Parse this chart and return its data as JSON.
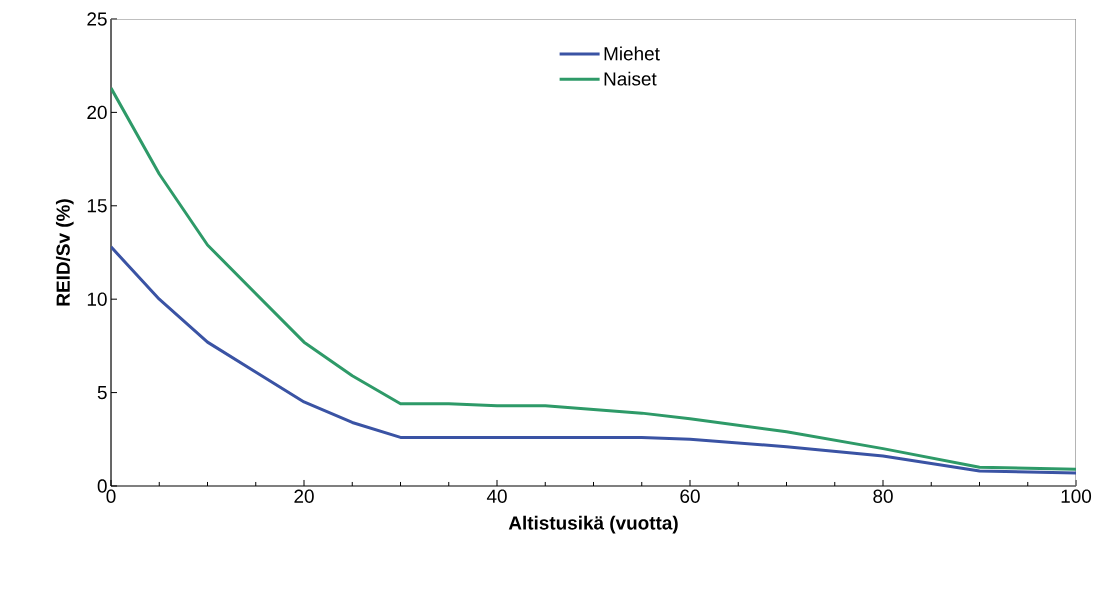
{
  "chart_data": {
    "type": "line",
    "xlabel": "Altistusikä (vuotta)",
    "ylabel": "REID/Sv (%)",
    "x": [
      0,
      5,
      10,
      20,
      25,
      30,
      35,
      40,
      45,
      50,
      55,
      60,
      70,
      80,
      90,
      100
    ],
    "series": [
      {
        "name": "Miehet",
        "color": "#3a53a4",
        "values": [
          12.8,
          10.0,
          7.7,
          4.5,
          3.4,
          2.6,
          2.6,
          2.6,
          2.6,
          2.6,
          2.6,
          2.5,
          2.1,
          1.6,
          0.8,
          0.7
        ]
      },
      {
        "name": "Naiset",
        "color": "#2e9a68",
        "values": [
          21.3,
          16.7,
          12.9,
          7.7,
          5.9,
          4.4,
          4.4,
          4.3,
          4.3,
          4.1,
          3.9,
          3.6,
          2.9,
          2.0,
          1.0,
          0.9
        ]
      }
    ],
    "xlim": [
      0,
      100
    ],
    "ylim": [
      0,
      25
    ],
    "xticks": [
      0,
      20,
      40,
      60,
      80,
      100
    ],
    "yticks": [
      0,
      5,
      10,
      15,
      20,
      25
    ],
    "grid": false,
    "legend": "top",
    "marker": "none",
    "line_style": "solid"
  }
}
